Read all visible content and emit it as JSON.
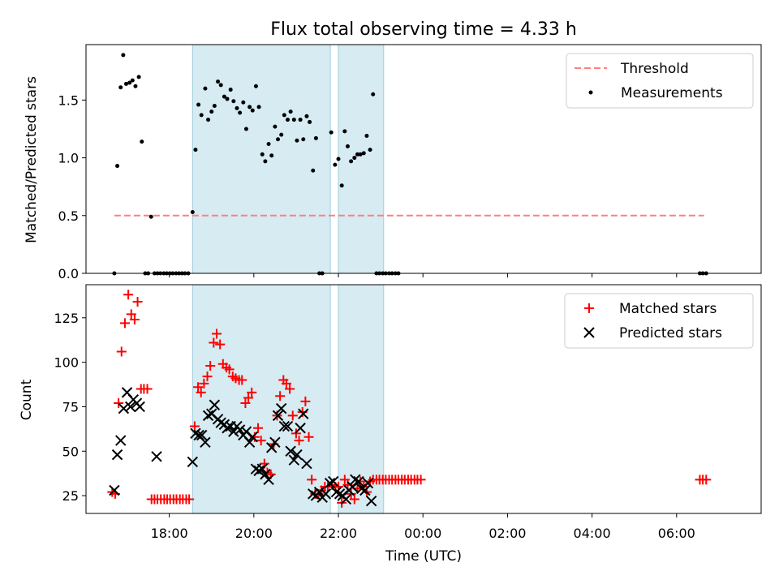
{
  "chart_data": {
    "title": "Flux total observing time = 4.33 h",
    "type": "scatter",
    "x_axis": {
      "label": "Time (UTC)",
      "units": "hours since 17:00 UTC",
      "range": [
        -0.97,
        15.0
      ],
      "ticks": [
        {
          "x": 1,
          "label": "18:00"
        },
        {
          "x": 3,
          "label": "20:00"
        },
        {
          "x": 5,
          "label": "22:00"
        },
        {
          "x": 7,
          "label": "00:00"
        },
        {
          "x": 9,
          "label": "02:00"
        },
        {
          "x": 11,
          "label": "04:00"
        },
        {
          "x": 13,
          "label": "06:00"
        }
      ]
    },
    "observing_windows": [
      [
        1.55,
        4.81
      ],
      [
        5.0,
        6.07
      ]
    ],
    "panels": [
      {
        "ylabel": "Matched/Predicted stars",
        "ylim": [
          0,
          1.98
        ],
        "yticks": [
          0.0,
          0.5,
          1.0,
          1.5
        ],
        "ytick_labels": [
          "0.0",
          "0.5",
          "1.0",
          "1.5"
        ],
        "legend": [
          "Threshold",
          "Measurements"
        ],
        "threshold": {
          "name": "Threshold",
          "y": 0.5,
          "x_range": [
            -0.3,
            13.65
          ],
          "color": "#ff7f7f"
        },
        "measurements": {
          "name": "Measurements",
          "color": "#000000",
          "points": [
            [
              -0.3,
              0.0
            ],
            [
              -0.23,
              0.93
            ],
            [
              -0.15,
              1.61
            ],
            [
              -0.09,
              1.89
            ],
            [
              -0.02,
              1.64
            ],
            [
              0.06,
              1.65
            ],
            [
              0.13,
              1.67
            ],
            [
              0.2,
              1.62
            ],
            [
              0.28,
              1.7
            ],
            [
              0.35,
              1.14
            ],
            [
              0.43,
              0.0
            ],
            [
              0.5,
              0.0
            ],
            [
              0.57,
              0.49
            ],
            [
              0.65,
              0.0
            ],
            [
              0.72,
              0.0
            ],
            [
              0.79,
              0.0
            ],
            [
              0.87,
              0.0
            ],
            [
              0.94,
              0.0
            ],
            [
              1.01,
              0.0
            ],
            [
              1.08,
              0.0
            ],
            [
              1.16,
              0.0
            ],
            [
              1.23,
              0.0
            ],
            [
              1.3,
              0.0
            ],
            [
              1.37,
              0.0
            ],
            [
              1.45,
              0.0
            ],
            [
              1.55,
              0.53
            ],
            [
              1.62,
              1.07
            ],
            [
              1.69,
              1.46
            ],
            [
              1.76,
              1.37
            ],
            [
              1.85,
              1.6
            ],
            [
              1.92,
              1.33
            ],
            [
              2.0,
              1.4
            ],
            [
              2.07,
              1.45
            ],
            [
              2.15,
              1.66
            ],
            [
              2.22,
              1.63
            ],
            [
              2.3,
              1.53
            ],
            [
              2.37,
              1.51
            ],
            [
              2.45,
              1.59
            ],
            [
              2.52,
              1.49
            ],
            [
              2.6,
              1.43
            ],
            [
              2.67,
              1.39
            ],
            [
              2.75,
              1.48
            ],
            [
              2.82,
              1.25
            ],
            [
              2.9,
              1.44
            ],
            [
              2.97,
              1.41
            ],
            [
              3.05,
              1.62
            ],
            [
              3.12,
              1.44
            ],
            [
              3.2,
              1.03
            ],
            [
              3.27,
              0.97
            ],
            [
              3.35,
              1.12
            ],
            [
              3.42,
              1.02
            ],
            [
              3.5,
              1.27
            ],
            [
              3.57,
              1.16
            ],
            [
              3.65,
              1.2
            ],
            [
              3.72,
              1.37
            ],
            [
              3.8,
              1.33
            ],
            [
              3.87,
              1.4
            ],
            [
              3.95,
              1.33
            ],
            [
              4.02,
              1.15
            ],
            [
              4.1,
              1.33
            ],
            [
              4.17,
              1.16
            ],
            [
              4.25,
              1.36
            ],
            [
              4.32,
              1.31
            ],
            [
              4.4,
              0.89
            ],
            [
              4.47,
              1.17
            ],
            [
              4.55,
              0.0
            ],
            [
              4.62,
              0.0
            ],
            [
              4.83,
              1.22
            ],
            [
              4.92,
              0.94
            ],
            [
              5.0,
              0.99
            ],
            [
              5.08,
              0.76
            ],
            [
              5.15,
              1.23
            ],
            [
              5.22,
              1.1
            ],
            [
              5.3,
              0.97
            ],
            [
              5.38,
              1.0
            ],
            [
              5.45,
              1.03
            ],
            [
              5.52,
              1.03
            ],
            [
              5.6,
              1.04
            ],
            [
              5.67,
              1.19
            ],
            [
              5.75,
              1.07
            ],
            [
              5.82,
              1.55
            ],
            [
              5.9,
              0.0
            ],
            [
              5.97,
              0.0
            ],
            [
              6.05,
              0.0
            ],
            [
              6.12,
              0.0
            ],
            [
              6.2,
              0.0
            ],
            [
              6.27,
              0.0
            ],
            [
              6.35,
              0.0
            ],
            [
              6.42,
              0.0
            ],
            [
              13.55,
              0.0
            ],
            [
              13.62,
              0.0
            ],
            [
              13.7,
              0.0
            ]
          ]
        }
      },
      {
        "ylabel": "Count",
        "ylim": [
          15,
          143.6
        ],
        "yticks": [
          25,
          50,
          75,
          100,
          125
        ],
        "ytick_labels": [
          "25",
          "50",
          "75",
          "100",
          "125"
        ],
        "legend": [
          "Matched stars",
          "Predicted stars"
        ],
        "matched": {
          "name": "Matched stars",
          "color": "#ff0000",
          "points": [
            [
              -0.35,
              27
            ],
            [
              -0.28,
              26
            ],
            [
              -0.2,
              77
            ],
            [
              -0.13,
              106
            ],
            [
              -0.05,
              122
            ],
            [
              0.03,
              138
            ],
            [
              0.1,
              127
            ],
            [
              0.18,
              124
            ],
            [
              0.25,
              134
            ],
            [
              0.33,
              85
            ],
            [
              0.4,
              85
            ],
            [
              0.48,
              85
            ],
            [
              0.58,
              23
            ],
            [
              0.65,
              23
            ],
            [
              0.72,
              23
            ],
            [
              0.8,
              23
            ],
            [
              0.88,
              23
            ],
            [
              0.95,
              23
            ],
            [
              1.02,
              23
            ],
            [
              1.1,
              23
            ],
            [
              1.17,
              23
            ],
            [
              1.25,
              23
            ],
            [
              1.32,
              23
            ],
            [
              1.4,
              23
            ],
            [
              1.47,
              23
            ],
            [
              1.6,
              64
            ],
            [
              1.68,
              86
            ],
            [
              1.75,
              83
            ],
            [
              1.82,
              88
            ],
            [
              1.9,
              92
            ],
            [
              1.97,
              98
            ],
            [
              2.05,
              111
            ],
            [
              2.12,
              116
            ],
            [
              2.2,
              110
            ],
            [
              2.27,
              99
            ],
            [
              2.35,
              97
            ],
            [
              2.42,
              96
            ],
            [
              2.5,
              92
            ],
            [
              2.57,
              91
            ],
            [
              2.65,
              90
            ],
            [
              2.72,
              90
            ],
            [
              2.8,
              77
            ],
            [
              2.87,
              80
            ],
            [
              2.95,
              83
            ],
            [
              3.02,
              58
            ],
            [
              3.1,
              63
            ],
            [
              3.17,
              56
            ],
            [
              3.25,
              43
            ],
            [
              3.32,
              38
            ],
            [
              3.4,
              37
            ],
            [
              3.47,
              54
            ],
            [
              3.55,
              70
            ],
            [
              3.62,
              81
            ],
            [
              3.7,
              90
            ],
            [
              3.77,
              88
            ],
            [
              3.85,
              85
            ],
            [
              3.92,
              70
            ],
            [
              4.0,
              60
            ],
            [
              4.07,
              56
            ],
            [
              4.15,
              72
            ],
            [
              4.22,
              78
            ],
            [
              4.3,
              58
            ],
            [
              4.37,
              34
            ],
            [
              4.45,
              26
            ],
            [
              4.53,
              26
            ],
            [
              4.6,
              28
            ],
            [
              4.68,
              30
            ],
            [
              4.75,
              30
            ],
            [
              4.85,
              31
            ],
            [
              4.93,
              30
            ],
            [
              5.0,
              30
            ],
            [
              5.08,
              21
            ],
            [
              5.15,
              34
            ],
            [
              5.22,
              31
            ],
            [
              5.3,
              26
            ],
            [
              5.38,
              23
            ],
            [
              5.45,
              29
            ],
            [
              5.52,
              33
            ],
            [
              5.6,
              30
            ],
            [
              5.67,
              27
            ],
            [
              5.75,
              33
            ],
            [
              5.82,
              34
            ],
            [
              5.9,
              34
            ],
            [
              5.97,
              34
            ],
            [
              6.05,
              34
            ],
            [
              6.12,
              34
            ],
            [
              6.2,
              34
            ],
            [
              6.27,
              34
            ],
            [
              6.35,
              34
            ],
            [
              6.42,
              34
            ],
            [
              6.5,
              34
            ],
            [
              6.57,
              34
            ],
            [
              6.65,
              34
            ],
            [
              6.72,
              34
            ],
            [
              6.8,
              34
            ],
            [
              6.87,
              34
            ],
            [
              6.95,
              34
            ],
            [
              13.55,
              34
            ],
            [
              13.62,
              34
            ],
            [
              13.7,
              34
            ]
          ]
        },
        "predicted": {
          "name": "Predicted stars",
          "color": "#000000",
          "points": [
            [
              -0.3,
              28
            ],
            [
              -0.23,
              48
            ],
            [
              -0.15,
              56
            ],
            [
              -0.08,
              74
            ],
            [
              0.0,
              83
            ],
            [
              0.08,
              75
            ],
            [
              0.15,
              79
            ],
            [
              0.23,
              77
            ],
            [
              0.3,
              75
            ],
            [
              0.7,
              47
            ],
            [
              1.55,
              44
            ],
            [
              1.62,
              60
            ],
            [
              1.7,
              59
            ],
            [
              1.77,
              59
            ],
            [
              1.85,
              55
            ],
            [
              1.92,
              70
            ],
            [
              2.0,
              71
            ],
            [
              2.07,
              76
            ],
            [
              2.15,
              68
            ],
            [
              2.22,
              66
            ],
            [
              2.3,
              65
            ],
            [
              2.37,
              63
            ],
            [
              2.45,
              64
            ],
            [
              2.52,
              61
            ],
            [
              2.6,
              64
            ],
            [
              2.67,
              62
            ],
            [
              2.75,
              59
            ],
            [
              2.82,
              61
            ],
            [
              2.9,
              55
            ],
            [
              2.97,
              58
            ],
            [
              3.05,
              40
            ],
            [
              3.12,
              39
            ],
            [
              3.2,
              40
            ],
            [
              3.27,
              37
            ],
            [
              3.35,
              34
            ],
            [
              3.42,
              52
            ],
            [
              3.5,
              55
            ],
            [
              3.57,
              70
            ],
            [
              3.65,
              74
            ],
            [
              3.72,
              64
            ],
            [
              3.8,
              64
            ],
            [
              3.87,
              50
            ],
            [
              3.95,
              45
            ],
            [
              4.02,
              48
            ],
            [
              4.1,
              63
            ],
            [
              4.17,
              71
            ],
            [
              4.25,
              43
            ],
            [
              4.4,
              26
            ],
            [
              4.47,
              25
            ],
            [
              4.55,
              27
            ],
            [
              4.62,
              24
            ],
            [
              4.7,
              26
            ],
            [
              4.8,
              32
            ],
            [
              4.88,
              33
            ],
            [
              4.95,
              27
            ],
            [
              5.03,
              26
            ],
            [
              5.1,
              25
            ],
            [
              5.18,
              23
            ],
            [
              5.25,
              28
            ],
            [
              5.33,
              30
            ],
            [
              5.4,
              34
            ],
            [
              5.48,
              33
            ],
            [
              5.55,
              29
            ],
            [
              5.63,
              28
            ],
            [
              5.7,
              32
            ],
            [
              5.78,
              22
            ]
          ]
        }
      }
    ]
  }
}
